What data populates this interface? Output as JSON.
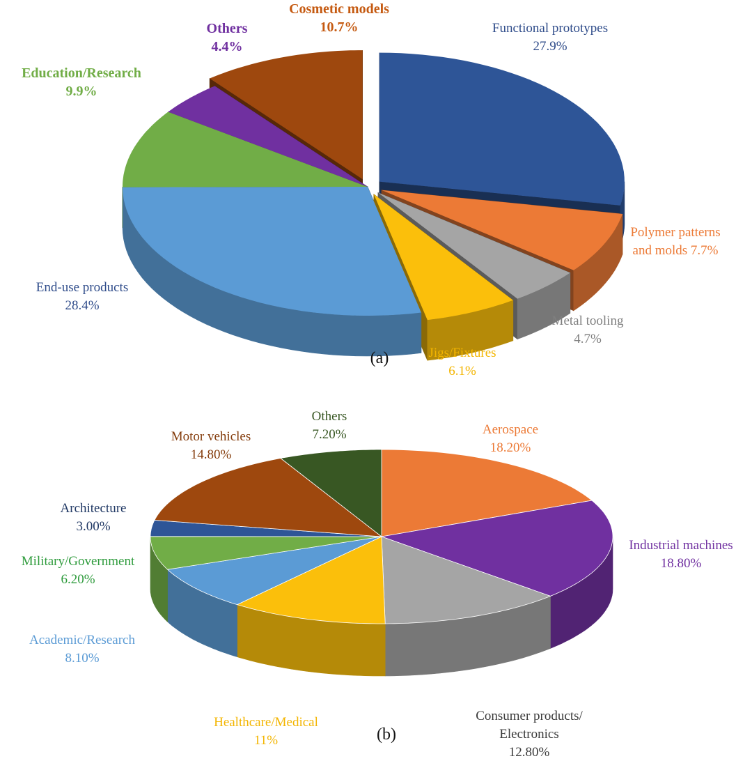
{
  "chart_data": [
    {
      "type": "pie",
      "style": "3d-exploded",
      "panel_label": "(a)",
      "unit": "%",
      "slices": [
        {
          "label": "Functional prototypes",
          "value": 27.9,
          "value_text": "27.9%",
          "color": "#2E5597",
          "label_color": "#2F4C8A",
          "exploded": true,
          "bold": false
        },
        {
          "label": "Polymer patterns and molds",
          "value": 7.7,
          "value_text": "7.7%",
          "label_text": [
            "Polymer patterns",
            "and molds 7.7%"
          ],
          "color": "#EC7A36",
          "label_color": "#EC7A36",
          "exploded": true,
          "bold": false
        },
        {
          "label": "Metal tooling",
          "value": 4.7,
          "value_text": "4.7%",
          "color": "#A5A5A5",
          "label_color": "#7F7F7F",
          "exploded": true,
          "bold": false
        },
        {
          "label": "Jigs/Fixtures",
          "value": 6.1,
          "value_text": "6.1%",
          "color": "#FBBF0B",
          "label_color": "#F3B500",
          "exploded": true,
          "bold": false
        },
        {
          "label": "End-use products",
          "value": 28.4,
          "value_text": "28.4%",
          "color": "#5B9BD5",
          "label_color": "#2F4C8A",
          "exploded": false,
          "bold": false
        },
        {
          "label": "Education/Research",
          "value": 9.9,
          "value_text": "9.9%",
          "color": "#71AD47",
          "label_color": "#71AD47",
          "exploded": false,
          "bold": true
        },
        {
          "label": "Others",
          "value": 4.4,
          "value_text": "4.4%",
          "color": "#7030A0",
          "label_color": "#7030A0",
          "exploded": false,
          "bold": true
        },
        {
          "label": "Cosmetic models",
          "value": 10.7,
          "value_text": "10.7%",
          "color": "#9E480E",
          "label_color": "#C55A11",
          "exploded": true,
          "bold": true
        }
      ]
    },
    {
      "type": "pie",
      "style": "3d",
      "panel_label": "(b)",
      "unit": "%",
      "slices": [
        {
          "label": "Aerospace",
          "value": 18.2,
          "value_text": "18.20%",
          "color": "#EC7A36",
          "label_color": "#EC7A36"
        },
        {
          "label": "Industrial machines",
          "value": 18.8,
          "value_text": "18.80%",
          "color": "#7030A0",
          "label_color": "#7030A0"
        },
        {
          "label": "Consumer products/ Electronics",
          "value": 12.8,
          "value_text": "12.80%",
          "label_text": [
            "Consumer products/",
            "Electronics"
          ],
          "color": "#A5A5A5",
          "label_color": "#3A3A3A"
        },
        {
          "label": "Healthcare/Medical",
          "value": 11,
          "value_text": "11%",
          "color": "#FBBF0B",
          "label_color": "#F3B500"
        },
        {
          "label": "Academic/Research",
          "value": 8.1,
          "value_text": "8.10%",
          "color": "#5B9BD5",
          "label_color": "#5B9BD5"
        },
        {
          "label": "Military/Government",
          "value": 6.2,
          "value_text": "6.20%",
          "color": "#71AD47",
          "label_color": "#2E9B3C"
        },
        {
          "label": "Architecture",
          "value": 3.0,
          "value_text": "3.00%",
          "color": "#2E5597",
          "label_color": "#203864"
        },
        {
          "label": "Motor vehicles",
          "value": 14.8,
          "value_text": "14.80%",
          "color": "#9E480E",
          "label_color": "#843C0C"
        },
        {
          "label": "Others",
          "value": 7.2,
          "value_text": "7.20%",
          "color": "#385723",
          "label_color": "#385723"
        }
      ]
    }
  ]
}
